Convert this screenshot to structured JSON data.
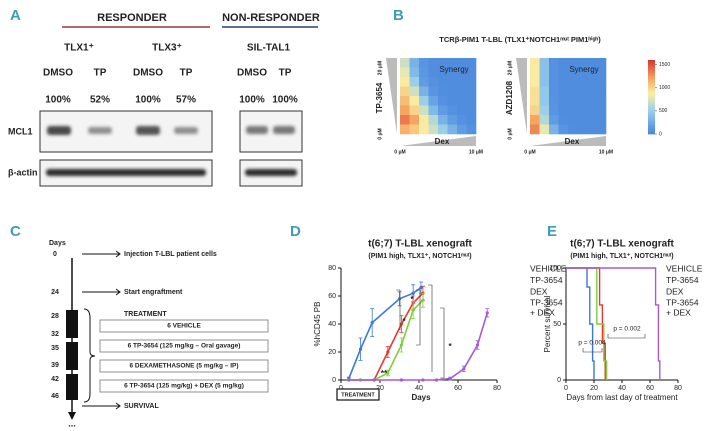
{
  "panel_a": {
    "label": "A",
    "groups": [
      {
        "title": "RESPONDER",
        "lines": [
          {
            "name": "TLX1⁺",
            "treatments": [
              "DMSO",
              "TP"
            ],
            "percents": [
              "100%",
              "52%"
            ]
          },
          {
            "name": "TLX3⁺",
            "treatments": [
              "DMSO",
              "TP"
            ],
            "percents": [
              "100%",
              "57%"
            ]
          }
        ]
      },
      {
        "title": "NON-RESPONDER",
        "lines": [
          {
            "name": "SIL-TAL1",
            "treatments": [
              "DMSO",
              "TP"
            ],
            "percents": [
              "100%",
              "100%"
            ]
          }
        ]
      }
    ],
    "rows": [
      "MCL1",
      "β-actin"
    ]
  },
  "panel_c": {
    "label": "C",
    "days_label": "Days",
    "days": [
      0,
      24,
      28,
      32,
      35,
      39,
      42,
      46
    ],
    "ellipsis": "...",
    "injection": "Injection T-LBL patient cells",
    "engraftment": "Start engraftment",
    "treatment": "TREATMENT",
    "survival": "SURVIVAL",
    "groups": [
      {
        "text": "6 VEHICLE",
        "color": "#3c6fd0"
      },
      {
        "text": "6 TP-3654 (125 mg/kg – Oral gavage)",
        "color": "#d63a2e"
      },
      {
        "text": "6 DEXAMETHASONE (5 mg/kg – IP)",
        "color": "#6fb83a"
      },
      {
        "text": "6 TP-3654 (125 mg/kg) + DEX (5 mg/kg)",
        "color": "#9a4fcf"
      }
    ]
  },
  "chart_data": [
    {
      "type": "heatmap",
      "label": "B",
      "title": "TCRβ-PIM1 T-LBL (TLX1⁺NOTCH1ᵐᵘᵗ PIM1ʰⁱᵍʰ)",
      "xlabel": "Dex",
      "x_left": "0 μM",
      "x_right": "10 μM",
      "y_top": "20 μM",
      "y_bottom": "0 μM",
      "annotation": "Synergy",
      "clim": [
        0,
        1600
      ],
      "colorbar_ticks": [
        0,
        500,
        1000,
        1500
      ],
      "heatmaps": [
        {
          "ylabel": "TP-3654",
          "values": [
            [
              700,
              300,
              100,
              60,
              50,
              50,
              50,
              50
            ],
            [
              800,
              350,
              120,
              60,
              50,
              50,
              50,
              50
            ],
            [
              900,
              500,
              150,
              80,
              50,
              50,
              50,
              50
            ],
            [
              1000,
              700,
              300,
              100,
              60,
              50,
              50,
              50
            ],
            [
              1100,
              900,
              500,
              200,
              80,
              50,
              50,
              50
            ],
            [
              1200,
              1000,
              700,
              350,
              150,
              80,
              50,
              50
            ],
            [
              1350,
              1200,
              900,
              600,
              300,
              150,
              80,
              50
            ],
            [
              1150,
              1050,
              900,
              700,
              500,
              300,
              150,
              80
            ]
          ]
        },
        {
          "ylabel": "AZD1208",
          "values": [
            [
              900,
              400,
              80,
              50,
              50,
              50,
              50,
              50
            ],
            [
              900,
              400,
              80,
              50,
              50,
              50,
              50,
              50
            ],
            [
              900,
              400,
              80,
              50,
              50,
              50,
              50,
              50
            ],
            [
              950,
              450,
              80,
              50,
              50,
              50,
              50,
              50
            ],
            [
              950,
              450,
              90,
              50,
              50,
              50,
              50,
              50
            ],
            [
              1000,
              500,
              100,
              50,
              50,
              50,
              50,
              50
            ],
            [
              1200,
              600,
              150,
              60,
              50,
              50,
              50,
              50
            ],
            [
              1300,
              800,
              300,
              100,
              60,
              50,
              50,
              50
            ]
          ]
        }
      ]
    },
    {
      "type": "line",
      "label": "D",
      "title": "t(6;7) T-LBL xenograft",
      "subtitle": "(PIM1 high, TLX1⁺, NOTCH1ᵐᵘᵗ)",
      "xlabel": "Days",
      "ylabel": "%hCD45 PB",
      "treatment_label": "TREATMENT",
      "xlim": [
        0,
        80
      ],
      "ylim": [
        0,
        80
      ],
      "xticks": [
        0,
        20,
        40,
        60,
        80
      ],
      "yticks": [
        0,
        20,
        40,
        60,
        80
      ],
      "annotations": [
        "*",
        "*",
        "**",
        "*"
      ],
      "series": [
        {
          "name": "VEHICLE",
          "color": "#3c78d8",
          "x": [
            4,
            10,
            16,
            30,
            37,
            41
          ],
          "values": [
            1,
            22,
            41,
            58,
            62,
            66
          ],
          "errors": [
            1,
            8,
            10,
            5,
            6,
            4
          ]
        },
        {
          "name": "TP-3654",
          "color": "#e8392c",
          "x": [
            4,
            10,
            17,
            24,
            31,
            37,
            42
          ],
          "values": [
            0,
            0,
            0,
            20,
            40,
            55,
            62
          ],
          "errors": [
            0,
            0,
            0,
            4,
            6,
            5,
            5
          ]
        },
        {
          "name": "DEX",
          "color": "#82cc3c",
          "x": [
            4,
            10,
            17,
            24,
            31,
            37,
            42
          ],
          "values": [
            0,
            0,
            0,
            5,
            25,
            50,
            57
          ],
          "errors": [
            0,
            0,
            0,
            2,
            5,
            6,
            5
          ]
        },
        {
          "name": "TP-3654 + DEX",
          "color": "#a55bd6",
          "x": [
            4,
            17,
            31,
            42,
            49,
            56,
            63,
            70,
            75
          ],
          "values": [
            0,
            0,
            0,
            0,
            0,
            1,
            8,
            25,
            48
          ],
          "errors": [
            0,
            0,
            0,
            0,
            0,
            1,
            2,
            3,
            3
          ]
        }
      ]
    },
    {
      "type": "step",
      "label": "E",
      "title": "t(6;7) T-LBL xenograft",
      "subtitle": "(PIM1 high, TLX1⁺, NOTCH1ᵐᵘᵗ)",
      "xlabel": "Days from last day of treatment",
      "ylabel": "Percent survival",
      "xlim": [
        0,
        80
      ],
      "ylim": [
        0,
        100
      ],
      "xticks": [
        0,
        20,
        40,
        60,
        80
      ],
      "yticks": [
        0,
        50,
        100
      ],
      "annotations": [
        "p = 0.004",
        "p = 0.002"
      ],
      "series": [
        {
          "name": "VEHICLE",
          "color": "#3c78d8",
          "x": [
            0,
            15,
            17,
            19,
            20
          ],
          "values": [
            100,
            83,
            50,
            17,
            0
          ]
        },
        {
          "name": "TP-3654",
          "color": "#e8392c",
          "x": [
            0,
            24,
            26,
            28
          ],
          "values": [
            100,
            67,
            33,
            0
          ]
        },
        {
          "name": "DEX",
          "color": "#82cc3c",
          "x": [
            0,
            22,
            27,
            29
          ],
          "values": [
            100,
            50,
            17,
            0
          ]
        },
        {
          "name": "TP-3654 + DEX",
          "color": "#a55bd6",
          "x": [
            0,
            64,
            66,
            67
          ],
          "values": [
            100,
            67,
            17,
            0
          ]
        }
      ]
    }
  ]
}
